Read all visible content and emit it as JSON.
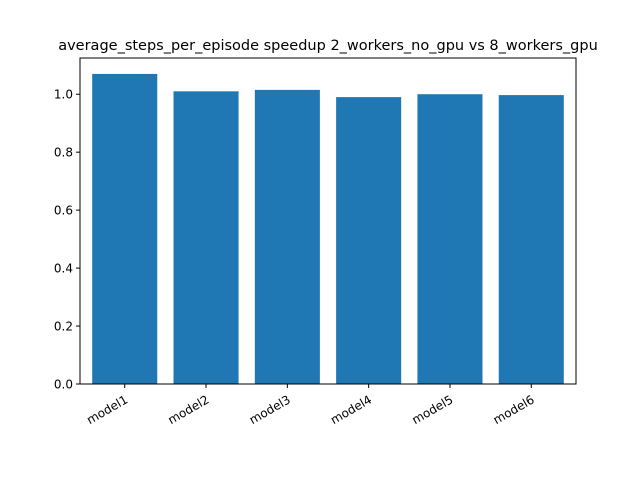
{
  "chart_data": {
    "type": "bar",
    "title": "average_steps_per_episode speedup 2_workers_no_gpu vs 8_workers_gpu",
    "xlabel": "",
    "ylabel": "",
    "categories": [
      "model1",
      "model2",
      "model3",
      "model4",
      "model5",
      "model6"
    ],
    "values": [
      1.07,
      1.01,
      1.015,
      0.99,
      1.0,
      0.997
    ],
    "ylim": [
      0,
      1.125
    ],
    "yticks": [
      0.0,
      0.2,
      0.4,
      0.6,
      0.8,
      1.0
    ],
    "ytick_labels": [
      "0.0",
      "0.2",
      "0.4",
      "0.6",
      "0.8",
      "1.0"
    ],
    "xtick_rotation": 30,
    "grid": false,
    "legend": "none",
    "bar_color": "#1f77b4"
  }
}
